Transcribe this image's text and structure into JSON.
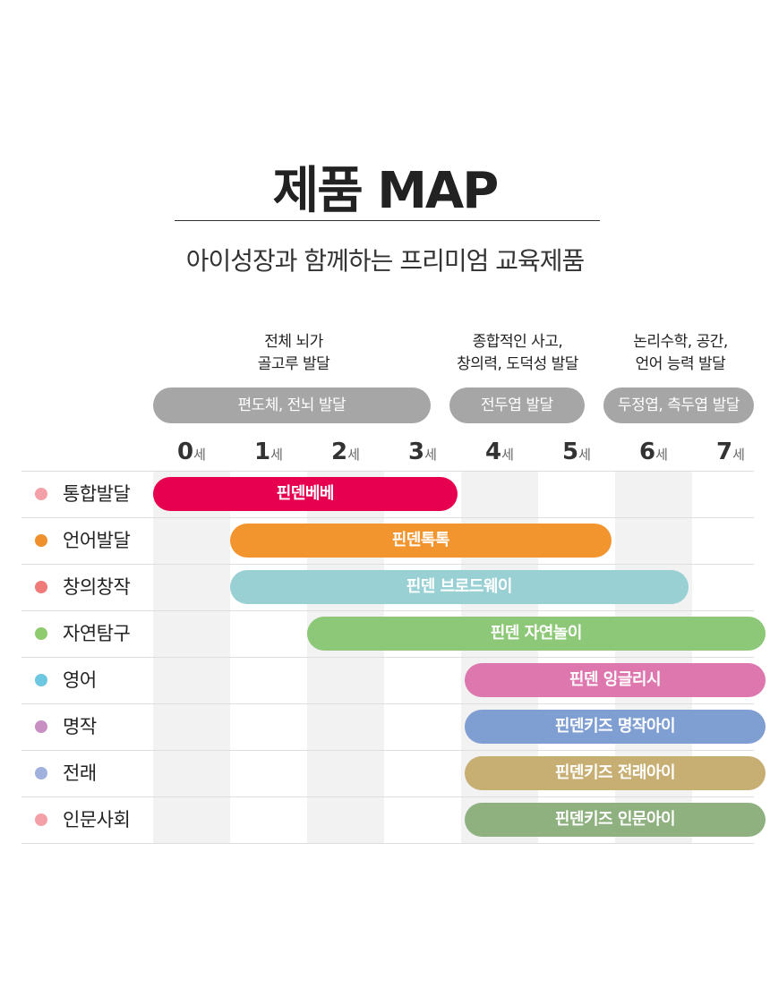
{
  "header": {
    "title": "제품 MAP",
    "subtitle": "아이성장과 함께하는 프리미엄 교육제품"
  },
  "descriptions": [
    {
      "text": "전체 뇌가\n골고루 발달"
    },
    {
      "text": "종합적인 사고,\n창의력, 도덕성 발달"
    },
    {
      "text": "논리수학, 공간,\n언어 능력 발달"
    }
  ],
  "stages": [
    {
      "label": "편도체, 전뇌 발달",
      "start_age": 0,
      "end_age": 3.6
    },
    {
      "label": "전두엽 발달",
      "start_age": 3.85,
      "end_age": 5.6
    },
    {
      "label": "두정엽, 측두엽 발달",
      "start_age": 5.85,
      "end_age": 7.8
    }
  ],
  "ages": [
    {
      "num": "0",
      "unit": "세"
    },
    {
      "num": "1",
      "unit": "세"
    },
    {
      "num": "2",
      "unit": "세"
    },
    {
      "num": "3",
      "unit": "세"
    },
    {
      "num": "4",
      "unit": "세"
    },
    {
      "num": "5",
      "unit": "세"
    },
    {
      "num": "6",
      "unit": "세"
    },
    {
      "num": "7",
      "unit": "세"
    }
  ],
  "rows": [
    {
      "category": "통합발달",
      "dot_color": "#f4a0a8",
      "product": "핀덴베베",
      "bar_color": "#e6004f",
      "start_age": 0,
      "end_age": 3.95
    },
    {
      "category": "언어발달",
      "dot_color": "#f0902c",
      "product": "핀덴톡톡",
      "bar_color": "#f2952f",
      "start_age": 1,
      "end_age": 5.95
    },
    {
      "category": "창의창작",
      "dot_color": "#f07a78",
      "product": "핀덴 브로드웨이",
      "bar_color": "#98d0d4",
      "start_age": 1,
      "end_age": 6.95
    },
    {
      "category": "자연탐구",
      "dot_color": "#8ecb6e",
      "product": "핀덴 자연놀이",
      "bar_color": "#8cc877",
      "start_age": 2,
      "end_age": 7.95
    },
    {
      "category": "영어",
      "dot_color": "#6cc8e0",
      "product": "핀덴 잉글리시",
      "bar_color": "#de77ae",
      "start_age": 4.05,
      "end_age": 7.95
    },
    {
      "category": "명작",
      "dot_color": "#c78fc2",
      "product": "핀덴키즈 명작아이",
      "bar_color": "#7f9fd3",
      "start_age": 4.05,
      "end_age": 7.95
    },
    {
      "category": "전래",
      "dot_color": "#9fb1dc",
      "product": "핀덴키즈 전래아이",
      "bar_color": "#c7ae72",
      "start_age": 4.05,
      "end_age": 7.95
    },
    {
      "category": "인문사회",
      "dot_color": "#f4a0a8",
      "product": "핀덴키즈 인문아이",
      "bar_color": "#8fb17f",
      "start_age": 4.05,
      "end_age": 7.95
    }
  ]
}
